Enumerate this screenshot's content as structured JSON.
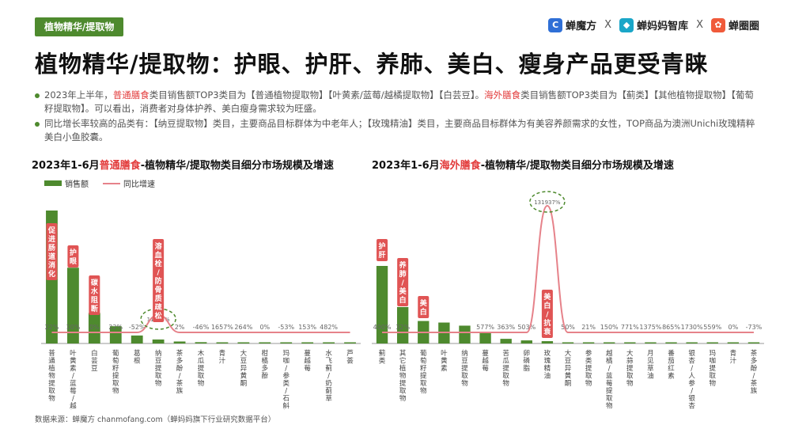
{
  "header": {
    "tag": "植物精华/提取物",
    "brands": [
      "蝉魔方",
      "蝉妈妈智库",
      "蝉圈圈"
    ],
    "separator": "X"
  },
  "title": "植物精华/提取物：护眼、护肝、养肺、美白、瘦身产品更受青睐",
  "bullets": [
    {
      "p1": "2023年上半年，",
      "r1": "普通膳食",
      "p2": "类目销售额TOP3类目为【普通植物提取物】【叶黄素/蓝莓/越橘提取物】【白芸豆】。",
      "r2": "海外膳食",
      "p3": "类目销售额TOP3类目为【蓟类】【其他植物提取物】【葡萄籽提取物】。可以看出，消费者对身体护养、美白瘦身需求较为旺盛。"
    },
    {
      "p1": "同比增长率较高的品类有：【纳豆提取物】类目，主要商品目标群体为中老年人；【玫瑰精油】类目，主要商品目标群体为有美容养颜需求的女性，TOP商品为澳洲Unichi玫瑰精粹美白小鱼胶囊。"
    }
  ],
  "legend": {
    "bar": "销售额",
    "line": "同比增速"
  },
  "source": "数据来源：蝉魔方 chanmofang.com（蝉妈妈旗下行业研究数据平台）",
  "colors": {
    "bar": "#4e8a2e",
    "line": "#e6828a",
    "accent": "#e23b3b",
    "callout": "#e05454"
  },
  "chart_data": [
    {
      "type": "bar",
      "title_pre": "2023年1-6月",
      "title_red": "普通膳食",
      "title_post": "-植物精华/提取物类目细分市场规模及增速",
      "categories": [
        "普通植物提取物",
        "叶黄素/蓝莓/越橘提取物",
        "白芸豆",
        "葡萄籽提取物",
        "葛根",
        "纳豆提取物",
        "茶多酚/茶族",
        "木瓜提取物",
        "青汁",
        "大豆异黄酮",
        "柑橘多酚",
        "玛咖/参类/石斛提取物",
        "蔓越莓",
        "水飞蓟/奶蓟草",
        "芦荟"
      ],
      "series": [
        {
          "name": "销售额",
          "values": [
            100,
            57,
            23,
            13,
            6,
            3,
            1.5,
            1,
            0.8,
            0.6,
            0.5,
            0.4,
            0.3,
            0.25,
            0.2
          ]
        },
        {
          "name": "同比增速",
          "labels": [
            "22%",
            "10%",
            "0%",
            "22%",
            "-52%",
            "11505%",
            "2%",
            "-46%",
            "1657%",
            "264%",
            "0%",
            "-53%",
            "153%",
            "482%",
            ""
          ],
          "values": [
            22,
            10,
            0,
            22,
            -52,
            11505,
            2,
            -46,
            1657,
            264,
            0,
            -53,
            153,
            482,
            null
          ]
        }
      ],
      "callouts": [
        {
          "index": 0,
          "text": "促进肠道消化"
        },
        {
          "index": 1,
          "text": "护眼"
        },
        {
          "index": 2,
          "text": "碳水阻断"
        },
        {
          "index": 5,
          "text": "溶血栓/防骨质疏松"
        }
      ],
      "highlight_label": "11505%"
    },
    {
      "type": "bar",
      "title_pre": "2023年1-6月",
      "title_red": "海外膳食",
      "title_post": "-植物精华/提取物类目细分市场规模及增速",
      "categories": [
        "蓟类",
        "其它植物提取物",
        "葡萄籽提取物",
        "叶黄素",
        "纳豆提取物",
        "蔓越莓",
        "苦瓜提取物",
        "卵磷脂",
        "玫瑰精油",
        "大豆异黄酮",
        "参类提取物",
        "越橘/蓝莓提取物",
        "大蒜提取物",
        "月见草油",
        "番茄红素",
        "银杏/人参/银杏",
        "玛咖提取物",
        "青汁",
        "茶多酚/茶族"
      ],
      "series": [
        {
          "name": "销售额",
          "values": [
            100,
            47,
            29,
            27,
            23,
            14,
            6,
            4,
            3,
            1.5,
            1.2,
            1,
            0.8,
            0.7,
            0.6,
            0.5,
            0.4,
            0.3,
            0.2
          ]
        },
        {
          "name": "同比增速",
          "labels": [
            "400%",
            "32%",
            "",
            "",
            "",
            "577%",
            "363%",
            "503%",
            "131937%",
            "50%",
            "21%",
            "150%",
            "771%",
            "1375%",
            "865%",
            "1730%",
            "559%",
            "0%",
            "-73%"
          ],
          "values": [
            400,
            32,
            null,
            null,
            null,
            577,
            363,
            503,
            131937,
            50,
            21,
            150,
            771,
            1375,
            865,
            1730,
            559,
            0,
            -73
          ]
        }
      ],
      "callouts": [
        {
          "index": 0,
          "text": "护肝"
        },
        {
          "index": 1,
          "text": "养肺/美白"
        },
        {
          "index": 2,
          "text": "美白"
        },
        {
          "index": 8,
          "text": "美白/抗衰"
        }
      ],
      "highlight_label": "131937%"
    }
  ]
}
